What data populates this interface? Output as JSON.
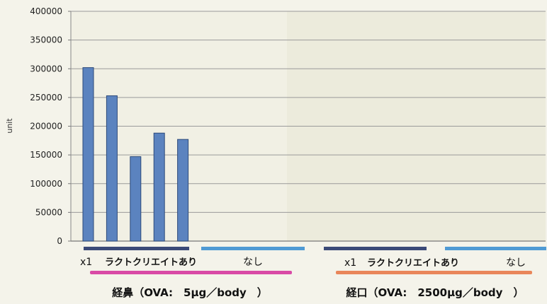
{
  "chart_data": {
    "type": "bar",
    "ylabel": "unit",
    "ylim": [
      0,
      400000
    ],
    "yticks": [
      0,
      50000,
      100000,
      150000,
      200000,
      250000,
      300000,
      350000,
      400000
    ],
    "grid": true,
    "values": [
      302000,
      253000,
      147000,
      188000,
      177000,
      0,
      0,
      0,
      0,
      0,
      0,
      0,
      0,
      0,
      0,
      0,
      0,
      0,
      0,
      0
    ],
    "bar_color": "#5b83bf",
    "groups": [
      {
        "x1_label": "x1",
        "label": "ラクトクリエイトあり",
        "bar_color": "#3b4a78"
      },
      {
        "label": "なし",
        "bar_color": "#4f9ad4"
      },
      {
        "x1_label": "x1",
        "label": "ラクトクリエイトあり",
        "bar_color": "#3b4a78"
      },
      {
        "label": "なし",
        "bar_color": "#4f9ad4"
      }
    ],
    "routes": [
      {
        "label": "経鼻（OVA:　5μg／body　）",
        "bar_color": "#d94aa6"
      },
      {
        "label": "経口（OVA:　2500μg／body　）",
        "bar_color": "#e9865a"
      }
    ]
  }
}
